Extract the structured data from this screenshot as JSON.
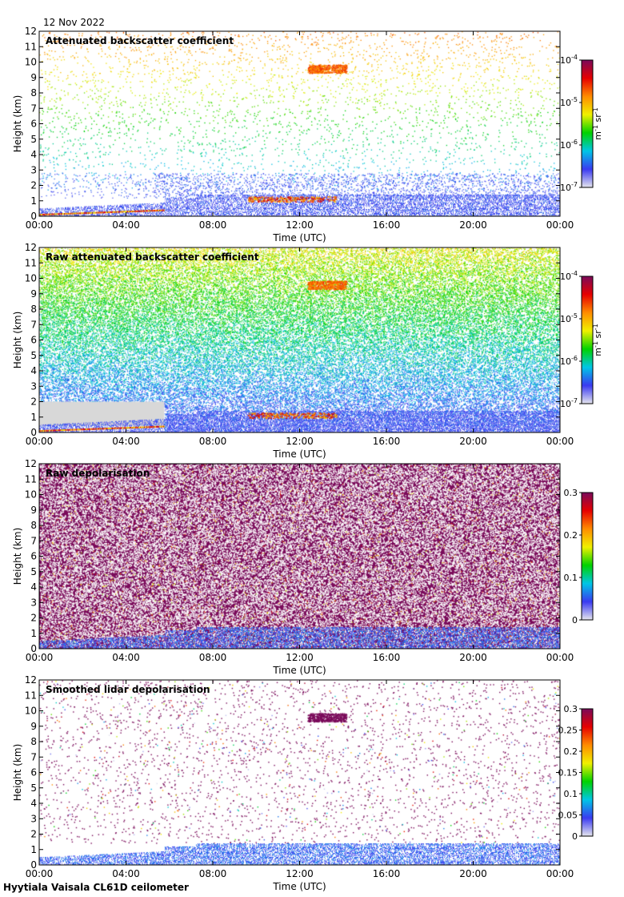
{
  "header": {
    "date": "12 Nov 2022"
  },
  "footer": {
    "instrument": "Hyytiala Vaisala CL61D ceilometer"
  },
  "colors": {
    "colormap": [
      "#e6e6ee",
      "#3a3af0",
      "#00c6e6",
      "#00d200",
      "#f0f000",
      "#ff8c00",
      "#e60000",
      "#7a0a5a"
    ],
    "background": "#ffffff",
    "ground_grey": "#d8d8d8"
  },
  "chart_data": [
    {
      "type": "heatmap",
      "title": "Attenuated backscatter coefficient",
      "xlabel": "Time (UTC)",
      "ylabel": "Height (km)",
      "x_ticks": [
        "00:00",
        "04:00",
        "08:00",
        "12:00",
        "16:00",
        "20:00",
        "00:00"
      ],
      "xlim_hours": [
        0,
        24
      ],
      "ylim": [
        0,
        12
      ],
      "y_ticks": [
        "0",
        "1",
        "2",
        "3",
        "4",
        "5",
        "6",
        "7",
        "8",
        "9",
        "10",
        "11",
        "12"
      ],
      "colorbar": {
        "scale": "log",
        "tick_labels": [
          "10^-7",
          "10^-6",
          "10^-5",
          "10^-4"
        ],
        "unit_label": "m^-1 sr^-1"
      },
      "features": [
        "sparse noise speckle aloft",
        "low aerosol layer below 1.5 km",
        "cloud near 9.5 km around 12:30-14:00"
      ]
    },
    {
      "type": "heatmap",
      "title": "Raw attenuated backscatter coefficient",
      "xlabel": "Time (UTC)",
      "ylabel": "Height (km)",
      "x_ticks": [
        "00:00",
        "04:00",
        "08:00",
        "12:00",
        "16:00",
        "20:00",
        "00:00"
      ],
      "xlim_hours": [
        0,
        24
      ],
      "ylim": [
        0,
        12
      ],
      "y_ticks": [
        "0",
        "1",
        "2",
        "3",
        "4",
        "5",
        "6",
        "7",
        "8",
        "9",
        "10",
        "11",
        "12"
      ],
      "colorbar": {
        "scale": "log",
        "tick_labels": [
          "10^-7",
          "10^-6",
          "10^-5",
          "10^-4"
        ],
        "unit_label": "m^-1 sr^-1"
      },
      "features": [
        "dense noise increasing with height",
        "grey region below 2 km before 06:00"
      ]
    },
    {
      "type": "heatmap",
      "title": "Raw depolarisation",
      "xlabel": "Time (UTC)",
      "ylabel": "Height (km)",
      "x_ticks": [
        "00:00",
        "04:00",
        "08:00",
        "12:00",
        "16:00",
        "20:00",
        "00:00"
      ],
      "xlim_hours": [
        0,
        24
      ],
      "ylim": [
        0,
        12
      ],
      "y_ticks": [
        "0",
        "1",
        "2",
        "3",
        "4",
        "5",
        "6",
        "7",
        "8",
        "9",
        "10",
        "11",
        "12"
      ],
      "colorbar": {
        "scale": "linear",
        "tick_labels": [
          "0",
          "0.1",
          "0.2",
          "0.3"
        ],
        "unit_label": ""
      },
      "features": [
        "dense purple and white noise throughout",
        "blue layer below 1.5 km"
      ]
    },
    {
      "type": "heatmap",
      "title": "Smoothed lidar depolarisation",
      "xlabel": "Time (UTC)",
      "ylabel": "Height (km)",
      "x_ticks": [
        "00:00",
        "04:00",
        "08:00",
        "12:00",
        "16:00",
        "20:00",
        "00:00"
      ],
      "xlim_hours": [
        0,
        24
      ],
      "ylim": [
        0,
        12
      ],
      "y_ticks": [
        "0",
        "1",
        "2",
        "3",
        "4",
        "5",
        "6",
        "7",
        "8",
        "9",
        "10",
        "11",
        "12"
      ],
      "colorbar": {
        "scale": "linear",
        "tick_labels": [
          "0",
          "0.05",
          "0.1",
          "0.15",
          "0.2",
          "0.25",
          "0.3"
        ],
        "unit_label": ""
      },
      "features": [
        "sparse purple speckle aloft",
        "cloud near 9.5 km around 12:30-14:00",
        "blue boundary layer below 1.5 km"
      ]
    }
  ]
}
